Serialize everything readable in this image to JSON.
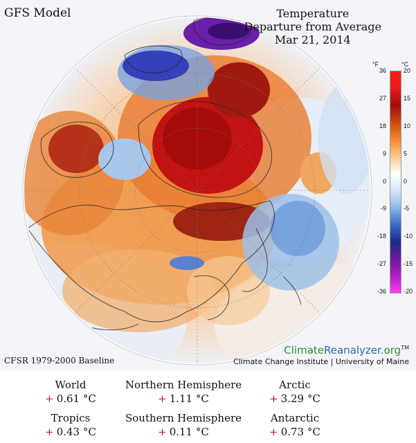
{
  "header": {
    "model": "GFS Model",
    "title_lines": [
      "Temperature",
      "Departure from Average",
      "Mar 21, 2014"
    ]
  },
  "footer": {
    "baseline": "CFSR 1979-2000 Baseline",
    "brand_climate": "Climate",
    "brand_reanalyzer": "Reanalyzer",
    "brand_org": ".org",
    "brand_tm": "TM",
    "institute": "Climate Change Institute | University of Maine"
  },
  "legend": {
    "unit_f": "°F",
    "unit_c": "°C",
    "ticks": [
      {
        "f": "36",
        "c": "20"
      },
      {
        "f": "27",
        "c": "15"
      },
      {
        "f": "18",
        "c": "10"
      },
      {
        "f": "9",
        "c": "5"
      },
      {
        "f": "0",
        "c": "0"
      },
      {
        "f": "-9",
        "c": "-5"
      },
      {
        "f": "-18",
        "c": "-10"
      },
      {
        "f": "-27",
        "c": "-15"
      },
      {
        "f": "-36",
        "c": "-20"
      }
    ],
    "colors": [
      "#ff1a1a",
      "#e81c1c",
      "#a00d0d",
      "#c94b0c",
      "#f28a2e",
      "#f8c98c",
      "#ffffff",
      "#d6e6f5",
      "#8fb8e8",
      "#3b6cc4",
      "#1d2a8a",
      "#6a1b9a",
      "#b01fc0",
      "#ff3df5"
    ]
  },
  "stats": [
    {
      "name": "World",
      "sign": "+",
      "value": "0.61 °C"
    },
    {
      "name": "Northern Hemisphere",
      "sign": "+",
      "value": "1.11 °C"
    },
    {
      "name": "Arctic",
      "sign": "+",
      "value": "3.29 °C"
    },
    {
      "name": "Tropics",
      "sign": "+",
      "value": "0.43 °C"
    },
    {
      "name": "Southern Hemisphere",
      "sign": "+",
      "value": "0.11 °C"
    },
    {
      "name": "Antarctic",
      "sign": "+",
      "value": "0.73 °C"
    }
  ]
}
